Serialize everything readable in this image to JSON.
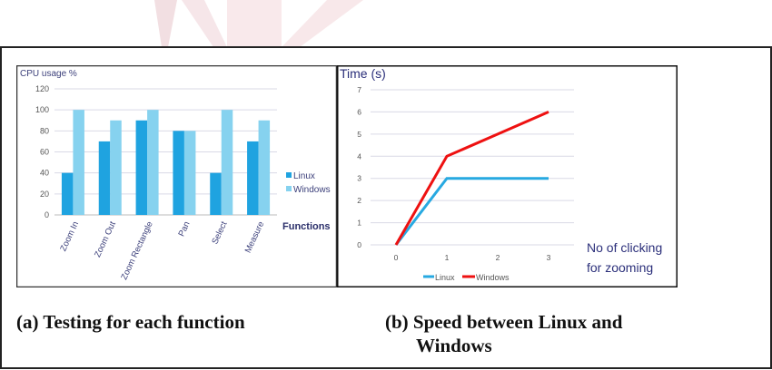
{
  "colors": {
    "linux_bar": "#1fa3e0",
    "windows_bar": "#86d2ef",
    "linux_line": "#27a9e1",
    "windows_line": "#ee1111",
    "axis_text": "#3b3f7a",
    "grid": "#d9d9e6"
  },
  "captions": {
    "a": "(a) Testing for each function",
    "b_line1": "(b) Speed between Linux and",
    "b_line2": "Windows"
  },
  "chart_data": [
    {
      "type": "bar",
      "title": "CPU usage %",
      "xlabel": "Functions",
      "ylabel": "CPU usage %",
      "categories": [
        "Zoom In",
        "Zoom Out",
        "Zoom Rectangle",
        "Pan",
        "Select",
        "Measure"
      ],
      "series": [
        {
          "name": "Linux",
          "values": [
            40,
            70,
            90,
            80,
            40,
            70
          ]
        },
        {
          "name": "Windows",
          "values": [
            100,
            90,
            100,
            80,
            100,
            90
          ]
        }
      ],
      "ylim": [
        0,
        120
      ],
      "yticks": [
        "0",
        "20",
        "40",
        "60",
        "80",
        "100",
        "120"
      ],
      "grid": true,
      "legend": "right"
    },
    {
      "type": "line",
      "title": "Time (s)",
      "ylabel": "Time (s)",
      "xlabel_line1": "No of clicking",
      "xlabel_line2": "for zooming",
      "x": [
        0,
        1,
        2,
        3
      ],
      "xticks": [
        "0",
        "1",
        "2",
        "3"
      ],
      "series": [
        {
          "name": "Linux",
          "values": [
            0,
            3,
            3,
            3
          ]
        },
        {
          "name": "Windows",
          "values": [
            0,
            4,
            5,
            6
          ]
        }
      ],
      "ylim": [
        0,
        7
      ],
      "yticks": [
        "0",
        "1",
        "2",
        "3",
        "4",
        "5",
        "6",
        "7"
      ],
      "grid": true,
      "legend": "bottom"
    }
  ]
}
